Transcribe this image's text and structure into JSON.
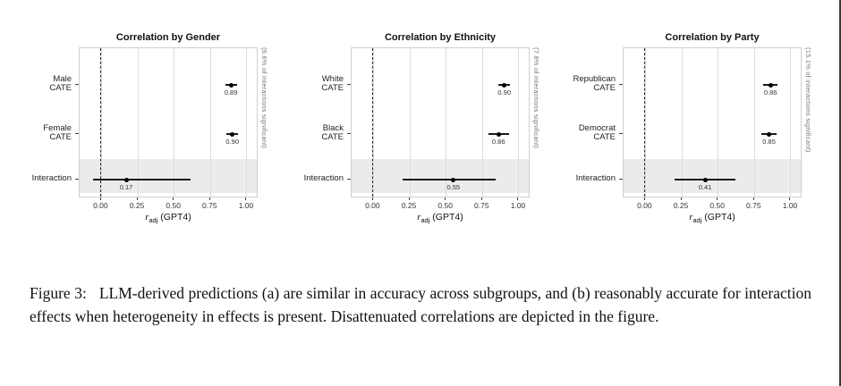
{
  "colors": {
    "band": "#ebebeb",
    "grid": "#dcdcdc",
    "point": "#000000",
    "border": "#cfcfcf"
  },
  "axis": {
    "tick_values": [
      0,
      0.25,
      0.5,
      0.75,
      1.0
    ],
    "tick_labels": [
      "0.00",
      "0.25",
      "0.50",
      "0.75",
      "1.00"
    ],
    "xlabel_symbol": "r",
    "xlabel_sub": "adj",
    "xlabel_rest": " (GPT4)",
    "xlim": [
      -0.15,
      1.08
    ]
  },
  "chart_data": [
    {
      "type": "scatter",
      "title": "Correlation by Gender",
      "side_label": "(6.6% of interactions significant)",
      "xlabel": "r_adj (GPT4)",
      "xlim": [
        -0.15,
        1.08
      ],
      "zero_line": 0,
      "categories": [
        "Male CATE",
        "Female CATE",
        "Interaction"
      ],
      "points": [
        {
          "category": "Male CATE",
          "label_lines": [
            "Male",
            "CATE"
          ],
          "value": 0.89,
          "lo": 0.85,
          "hi": 0.93,
          "label": "0.89"
        },
        {
          "category": "Female CATE",
          "label_lines": [
            "Female",
            "CATE"
          ],
          "value": 0.9,
          "lo": 0.86,
          "hi": 0.94,
          "label": "0.90"
        },
        {
          "category": "Interaction",
          "label_lines": [
            "Interaction"
          ],
          "value": 0.17,
          "lo": -0.06,
          "hi": 0.61,
          "label": "0.17",
          "highlight": true
        }
      ]
    },
    {
      "type": "scatter",
      "title": "Correlation by Ethnicity",
      "side_label": "(7.8% of interactions significant)",
      "xlabel": "r_adj (GPT4)",
      "xlim": [
        -0.15,
        1.08
      ],
      "zero_line": 0,
      "categories": [
        "White CATE",
        "Black CATE",
        "Interaction"
      ],
      "points": [
        {
          "category": "White CATE",
          "label_lines": [
            "White",
            "CATE"
          ],
          "value": 0.9,
          "lo": 0.86,
          "hi": 0.94,
          "label": "0.90"
        },
        {
          "category": "Black CATE",
          "label_lines": [
            "Black",
            "CATE"
          ],
          "value": 0.86,
          "lo": 0.79,
          "hi": 0.93,
          "label": "0.86"
        },
        {
          "category": "Interaction",
          "label_lines": [
            "Interaction"
          ],
          "value": 0.55,
          "lo": 0.2,
          "hi": 0.84,
          "label": "0.55",
          "highlight": true
        }
      ]
    },
    {
      "type": "scatter",
      "title": "Correlation by Party",
      "side_label": "(15.1% of interactions significant)",
      "xlabel": "r_adj (GPT4)",
      "xlim": [
        -0.15,
        1.08
      ],
      "zero_line": 0,
      "categories": [
        "Republican CATE",
        "Democrat CATE",
        "Interaction"
      ],
      "points": [
        {
          "category": "Republican CATE",
          "label_lines": [
            "Republican",
            "CATE"
          ],
          "value": 0.86,
          "lo": 0.81,
          "hi": 0.91,
          "label": "0.86"
        },
        {
          "category": "Democrat CATE",
          "label_lines": [
            "Democrat",
            "CATE"
          ],
          "value": 0.85,
          "lo": 0.8,
          "hi": 0.9,
          "label": "0.85"
        },
        {
          "category": "Interaction",
          "label_lines": [
            "Interaction"
          ],
          "value": 0.41,
          "lo": 0.2,
          "hi": 0.62,
          "label": "0.41",
          "highlight": true
        }
      ]
    }
  ],
  "caption": {
    "label": "Figure 3:",
    "text": "LLM-derived predictions (a) are similar in accuracy across subgroups, and (b) reasonably accurate for interaction effects when heterogeneity in effects is present. Disattenuated correlations are depicted in the figure."
  }
}
